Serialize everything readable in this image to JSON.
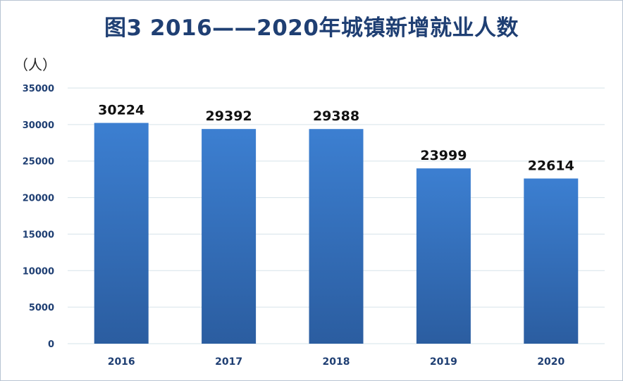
{
  "chart_data": {
    "type": "bar",
    "title": "图3   2016——2020年城镇新增就业人数",
    "ylabel": "（人）",
    "xlabel": "",
    "categories": [
      "2016",
      "2017",
      "2018",
      "2019",
      "2020"
    ],
    "values": [
      30224,
      29392,
      29388,
      23999,
      22614
    ],
    "ylim": [
      0,
      35000
    ],
    "yticks": [
      0,
      5000,
      10000,
      15000,
      20000,
      25000,
      30000,
      35000
    ],
    "grid": true,
    "legend": "none",
    "colors": {
      "bar_top": "#3c7fd1",
      "bar_bottom": "#2b5da0",
      "title": "#1f3f73",
      "ticks": "#1f3f73",
      "grid": "#d6e3ea"
    }
  }
}
